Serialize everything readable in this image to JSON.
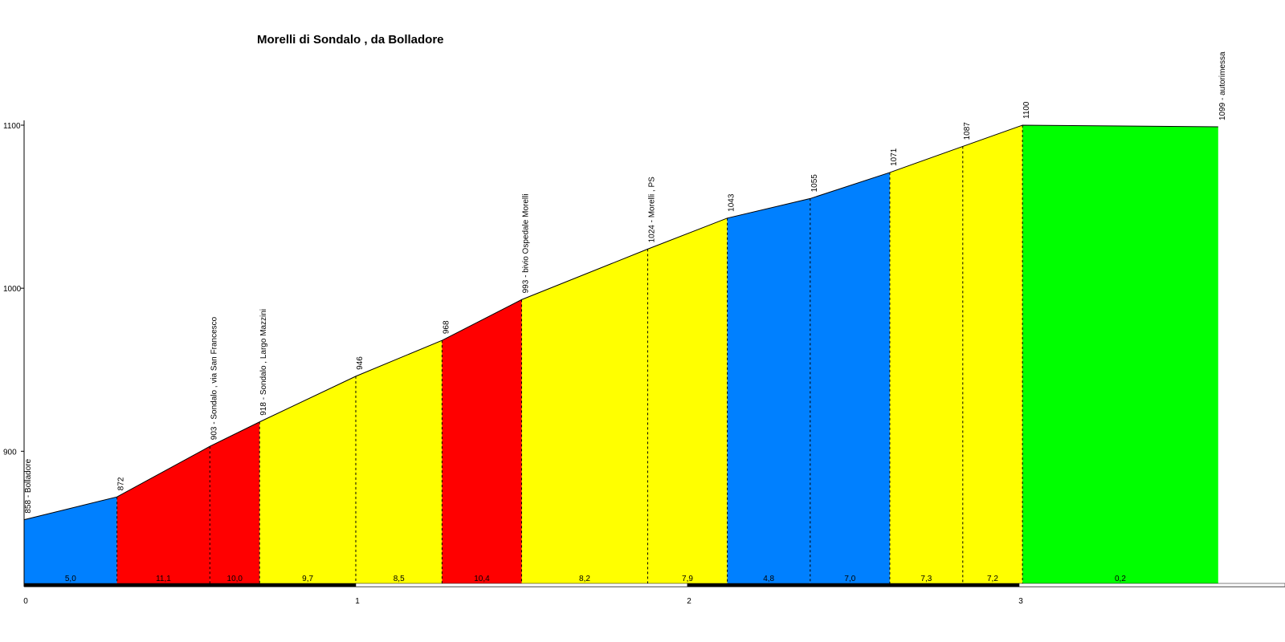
{
  "chart_data": {
    "type": "area",
    "title": "Morelli di Sondalo , da Bolladore",
    "xlabel": "",
    "ylabel": "",
    "xlim": [
      0,
      3.8
    ],
    "ylim": [
      815,
      1100
    ],
    "x_ticks": [
      0,
      1,
      2,
      3
    ],
    "y_ticks": [
      900,
      1000,
      1100
    ],
    "points": [
      {
        "x": 0.0,
        "y": 858,
        "label": "858 - Bolladore"
      },
      {
        "x": 0.28,
        "y": 872,
        "label": "872"
      },
      {
        "x": 0.56,
        "y": 903,
        "label": "903 - Sondalo , via San Francesco"
      },
      {
        "x": 0.71,
        "y": 918,
        "label": "918 - Sondalo , Largo Mazzini"
      },
      {
        "x": 1.0,
        "y": 946,
        "label": "946"
      },
      {
        "x": 1.26,
        "y": 968,
        "label": "968"
      },
      {
        "x": 1.5,
        "y": 993,
        "label": "993 - bivio Ospedale Morelli"
      },
      {
        "x": 1.88,
        "y": 1024,
        "label": "1024 - Morelli , PS"
      },
      {
        "x": 2.12,
        "y": 1043,
        "label": "1043"
      },
      {
        "x": 2.37,
        "y": 1055,
        "label": "1055"
      },
      {
        "x": 2.61,
        "y": 1071,
        "label": "1071"
      },
      {
        "x": 2.83,
        "y": 1087,
        "label": "1087"
      },
      {
        "x": 3.01,
        "y": 1100,
        "label": "1100"
      },
      {
        "x": 3.6,
        "y": 1099,
        "label": "1099 - autorimessa"
      }
    ],
    "segments": [
      {
        "from": 0.0,
        "to": 0.28,
        "gradient": "5,0",
        "color": "#0080ff"
      },
      {
        "from": 0.28,
        "to": 0.56,
        "gradient": "11,1",
        "color": "#ff0000"
      },
      {
        "from": 0.56,
        "to": 0.71,
        "gradient": "10,0",
        "color": "#ff0000"
      },
      {
        "from": 0.71,
        "to": 1.0,
        "gradient": "9,7",
        "color": "#ffff00"
      },
      {
        "from": 1.0,
        "to": 1.26,
        "gradient": "8,5",
        "color": "#ffff00"
      },
      {
        "from": 1.26,
        "to": 1.5,
        "gradient": "10,4",
        "color": "#ff0000"
      },
      {
        "from": 1.5,
        "to": 1.88,
        "gradient": "8,2",
        "color": "#ffff00"
      },
      {
        "from": 1.88,
        "to": 2.12,
        "gradient": "7,9",
        "color": "#ffff00"
      },
      {
        "from": 2.12,
        "to": 2.37,
        "gradient": "4,8",
        "color": "#0080ff"
      },
      {
        "from": 2.37,
        "to": 2.61,
        "gradient": "7,0",
        "color": "#0080ff"
      },
      {
        "from": 2.61,
        "to": 2.83,
        "gradient": "7,3",
        "color": "#ffff00"
      },
      {
        "from": 2.83,
        "to": 3.01,
        "gradient": "7,2",
        "color": "#ffff00"
      },
      {
        "from": 3.01,
        "to": 3.6,
        "gradient": "0,2",
        "color": "#00ff00"
      }
    ],
    "grid": false,
    "legend": "none"
  }
}
